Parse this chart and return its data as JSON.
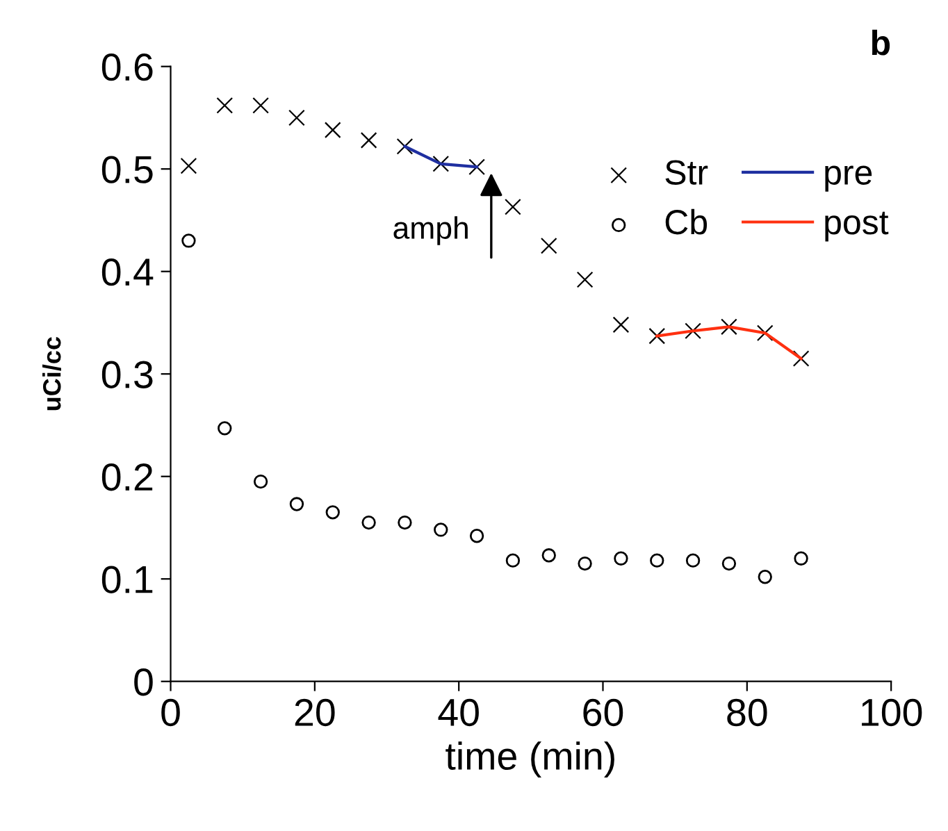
{
  "chart_data": {
    "type": "scatter",
    "title": "b",
    "xlabel": "time (min)",
    "ylabel": "uCi/cc",
    "xlim": [
      0,
      100
    ],
    "ylim": [
      0,
      0.6
    ],
    "xticks": [
      0,
      20,
      40,
      60,
      80,
      100
    ],
    "yticks": [
      0,
      0.1,
      0.2,
      0.3,
      0.4,
      0.5,
      0.6
    ],
    "grid": false,
    "legend": "top right",
    "annotations": [
      "amph"
    ],
    "series": [
      {
        "name": "Str",
        "marker": "cross",
        "color": "#000000",
        "x": [
          2.5,
          7.5,
          12.5,
          17.5,
          22.5,
          27.5,
          32.5,
          37.5,
          42.5,
          47.5,
          52.5,
          57.5,
          62.5,
          67.5,
          72.5,
          77.5,
          82.5,
          87.5
        ],
        "values": [
          0.503,
          0.562,
          0.562,
          0.55,
          0.538,
          0.528,
          0.522,
          0.505,
          0.502,
          0.463,
          0.425,
          0.392,
          0.348,
          0.337,
          0.342,
          0.346,
          0.34,
          0.315
        ]
      },
      {
        "name": "Cb",
        "marker": "circle",
        "color": "#000000",
        "x": [
          2.5,
          7.5,
          12.5,
          17.5,
          22.5,
          27.5,
          32.5,
          37.5,
          42.5,
          47.5,
          52.5,
          57.5,
          62.5,
          67.5,
          72.5,
          77.5,
          82.5,
          87.5
        ],
        "values": [
          0.43,
          0.247,
          0.195,
          0.173,
          0.165,
          0.155,
          0.155,
          0.148,
          0.142,
          0.118,
          0.123,
          0.115,
          0.12,
          0.118,
          0.118,
          0.115,
          0.102,
          0.12
        ]
      },
      {
        "name": "pre",
        "type": "line",
        "marker": "none",
        "color": "#1f2fa0",
        "x": [
          32.5,
          37.5,
          42.5
        ],
        "values": [
          0.522,
          0.505,
          0.502
        ]
      },
      {
        "name": "post",
        "type": "line",
        "marker": "none",
        "color": "#ff3010",
        "x": [
          67.5,
          72.5,
          77.5,
          82.5,
          87.5
        ],
        "values": [
          0.337,
          0.342,
          0.346,
          0.34,
          0.315
        ]
      }
    ]
  }
}
